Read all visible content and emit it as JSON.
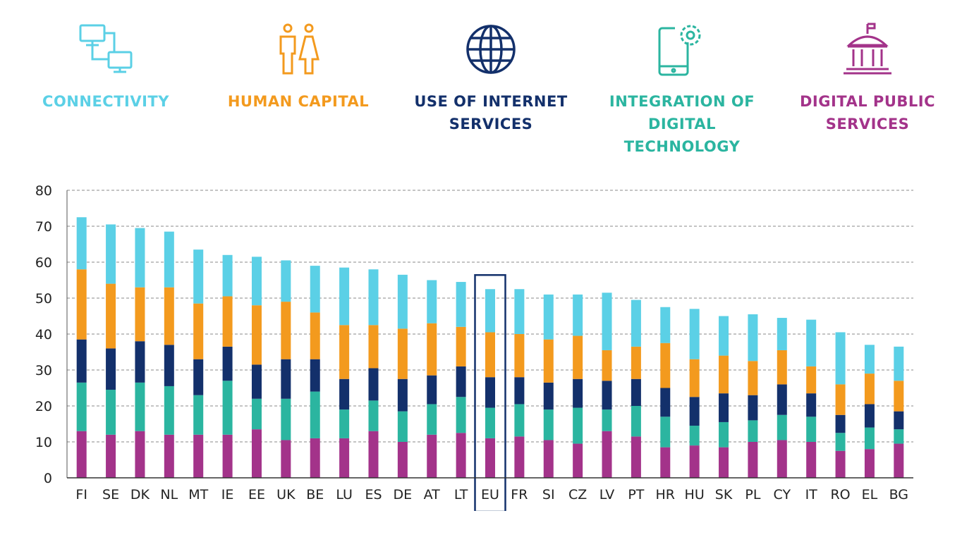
{
  "legend": [
    {
      "label": "CONNECTIVITY",
      "color": "#5bd0e6",
      "icon": "computer-network-icon"
    },
    {
      "label": "HUMAN CAPITAL",
      "color": "#f39a1e",
      "icon": "people-icon"
    },
    {
      "label": "USE OF INTERNET\nSERVICES",
      "color": "#13306b",
      "icon": "globe-icon"
    },
    {
      "label": "INTEGRATION OF\nDIGITAL TECHNOLOGY",
      "color": "#2bb5a0",
      "icon": "phone-gear-icon"
    },
    {
      "label": "DIGITAL PUBLIC\nSERVICES",
      "color": "#a3338a",
      "icon": "public-building-icon"
    }
  ],
  "chart_data": {
    "type": "bar",
    "stacked": true,
    "categories": [
      "FI",
      "SE",
      "DK",
      "NL",
      "MT",
      "IE",
      "EE",
      "UK",
      "BE",
      "LU",
      "ES",
      "DE",
      "AT",
      "LT",
      "EU",
      "FR",
      "SI",
      "CZ",
      "LV",
      "PT",
      "HR",
      "HU",
      "SK",
      "PL",
      "CY",
      "IT",
      "RO",
      "EL",
      "BG"
    ],
    "highlight_category": "EU",
    "ylim": [
      0,
      80
    ],
    "yticks": [
      0,
      10,
      20,
      30,
      40,
      50,
      60,
      70,
      80
    ],
    "grid": "horizontal dashed",
    "series": [
      {
        "key": "digital_public_services",
        "color": "#a3338a",
        "values": [
          13,
          12,
          13,
          12,
          12,
          12,
          13.5,
          10.5,
          11,
          11,
          13,
          10,
          12,
          12.5,
          11,
          11.5,
          10.5,
          9.5,
          13,
          11.5,
          8.5,
          9,
          8.5,
          10,
          10.5,
          10,
          7.5,
          8,
          9.5
        ]
      },
      {
        "key": "integration_of_digital_technology",
        "color": "#2bb5a0",
        "values": [
          13.5,
          12.5,
          13.5,
          13.5,
          11,
          15,
          8.5,
          11.5,
          13,
          8,
          8.5,
          8.5,
          8.5,
          10,
          8.5,
          9,
          8.5,
          10,
          6,
          8.5,
          8.5,
          5.5,
          7,
          6,
          7,
          7,
          5,
          6,
          4
        ]
      },
      {
        "key": "use_of_internet_services",
        "color": "#13306b",
        "values": [
          12,
          11.5,
          11.5,
          11.5,
          10,
          9.5,
          9.5,
          11,
          9,
          8.5,
          9,
          9,
          8,
          8.5,
          8.5,
          7.5,
          7.5,
          8,
          8,
          7.5,
          8,
          8,
          8,
          7,
          8.5,
          6.5,
          5,
          6.5,
          5
        ]
      },
      {
        "key": "human_capital",
        "color": "#f39a1e",
        "values": [
          19.5,
          18,
          15,
          16,
          15.5,
          14,
          16.5,
          16,
          13,
          15,
          12,
          14,
          14.5,
          11,
          12.5,
          12,
          12,
          12,
          8.5,
          9,
          12.5,
          10.5,
          10.5,
          9.5,
          9.5,
          7.5,
          8.5,
          8.5,
          8.5
        ]
      },
      {
        "key": "connectivity",
        "color": "#5bd0e6",
        "values": [
          14.5,
          16.5,
          16.5,
          15.5,
          15,
          11.5,
          13.5,
          11.5,
          13,
          16,
          15.5,
          15,
          12,
          12.5,
          12,
          12.5,
          12.5,
          11.5,
          16,
          13,
          10,
          14,
          11,
          13,
          9,
          13,
          14.5,
          8,
          9.5
        ]
      }
    ]
  }
}
